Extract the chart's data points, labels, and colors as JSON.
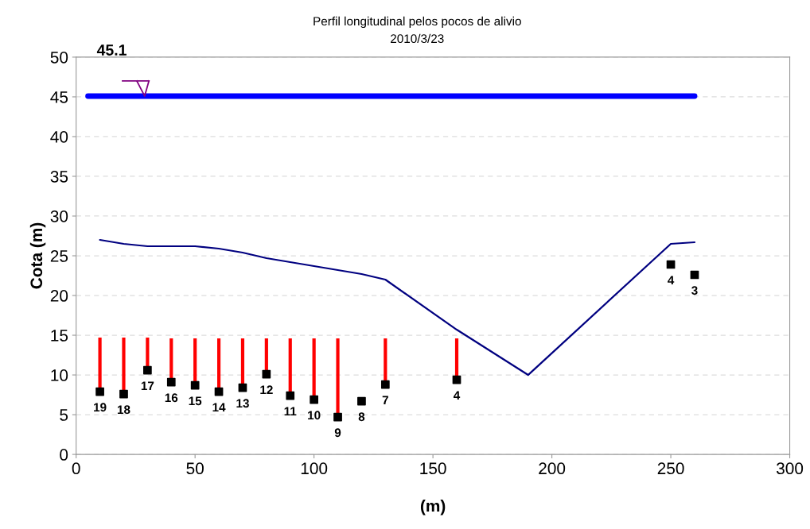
{
  "chart_data": {
    "type": "line",
    "title": "Perfil longitudinal pelos pocos de alivio",
    "subtitle": "2010/3/23",
    "xlabel": "(m)",
    "ylabel": "Cota (m)",
    "xlim": [
      0,
      300
    ],
    "xticks": [
      0,
      50,
      100,
      150,
      200,
      250,
      300
    ],
    "ylim": [
      0,
      50
    ],
    "yticks": [
      0,
      5,
      10,
      15,
      20,
      25,
      30,
      35,
      40,
      45,
      50
    ],
    "grid": "y",
    "series": [
      {
        "color": "#0000ff",
        "marker": "none",
        "x": [
          5,
          260
        ],
        "values": [
          45.1,
          45.1
        ]
      },
      {
        "color": "#000080",
        "marker": "none",
        "x": [
          10,
          20,
          30,
          40,
          50,
          60,
          70,
          80,
          90,
          100,
          110,
          120,
          130,
          160,
          190,
          250,
          260
        ],
        "values": [
          27.0,
          26.5,
          26.2,
          26.2,
          26.2,
          25.9,
          25.4,
          24.7,
          24.2,
          23.7,
          23.2,
          22.7,
          22.0,
          15.7,
          10.0,
          26.5,
          26.7
        ]
      },
      {
        "type": "bar",
        "color": "#ff0000",
        "x": [
          10,
          20,
          30,
          40,
          50,
          60,
          70,
          80,
          90,
          100,
          110,
          130,
          160
        ],
        "base": [
          7.9,
          7.6,
          10.6,
          9.1,
          8.7,
          7.9,
          8.4,
          10.1,
          7.4,
          6.9,
          4.7,
          8.8,
          9.4
        ],
        "values": [
          6.8,
          7.1,
          4.1,
          5.5,
          5.9,
          6.7,
          6.2,
          4.5,
          7.2,
          7.7,
          9.9,
          5.8,
          5.2
        ]
      },
      {
        "type": "scatter",
        "color": "#000000",
        "marker": "square",
        "x": [
          10,
          20,
          30,
          40,
          50,
          60,
          70,
          80,
          90,
          100,
          110,
          120,
          130,
          160,
          250,
          260
        ],
        "values": [
          7.9,
          7.6,
          10.6,
          9.1,
          8.7,
          7.9,
          8.4,
          10.1,
          7.4,
          6.9,
          4.7,
          6.7,
          8.8,
          9.4,
          23.9,
          22.6
        ]
      }
    ],
    "annotations": [
      {
        "text": "45.1",
        "x": 15,
        "y": 45.1
      },
      {
        "text": "19",
        "x": 10,
        "y": 7.9
      },
      {
        "text": "18",
        "x": 20,
        "y": 7.6
      },
      {
        "text": "17",
        "x": 30,
        "y": 10.6
      },
      {
        "text": "16",
        "x": 40,
        "y": 9.1
      },
      {
        "text": "15",
        "x": 50,
        "y": 8.7
      },
      {
        "text": "14",
        "x": 60,
        "y": 7.9
      },
      {
        "text": "13",
        "x": 70,
        "y": 8.4
      },
      {
        "text": "12",
        "x": 80,
        "y": 10.1
      },
      {
        "text": "11",
        "x": 90,
        "y": 7.4
      },
      {
        "text": "10",
        "x": 100,
        "y": 6.9
      },
      {
        "text": "9",
        "x": 110,
        "y": 4.7
      },
      {
        "text": "8",
        "x": 120,
        "y": 6.7
      },
      {
        "text": "7",
        "x": 130,
        "y": 8.8
      },
      {
        "text": "4",
        "x": 160,
        "y": 9.4
      },
      {
        "text": "4",
        "x": 250,
        "y": 23.9
      },
      {
        "text": "3",
        "x": 260,
        "y": 22.6
      }
    ]
  }
}
